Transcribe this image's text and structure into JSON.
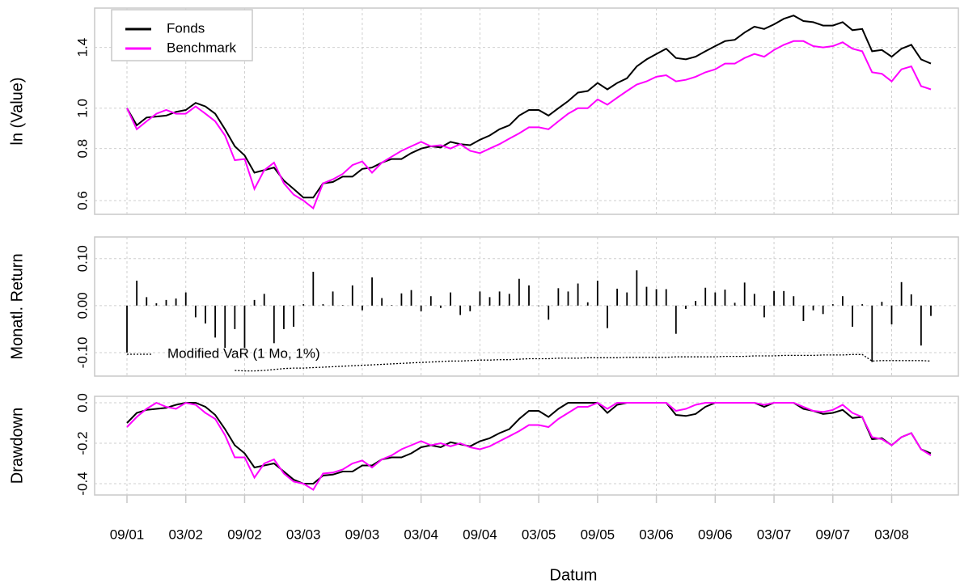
{
  "chart_data": [
    {
      "type": "line",
      "ylabel": "ln (Value)",
      "log_scale": true,
      "grid": true,
      "legend": "topleft",
      "ylim": [
        0.556,
        1.74
      ],
      "yticks": [
        0.6,
        0.8,
        {
          "value": 1,
          "label": "1.0"
        },
        1.4
      ],
      "series": [
        {
          "name": "Fonds",
          "color": "#000000",
          "values": [
            1.0,
            0.91,
            0.95,
            0.955,
            0.96,
            0.98,
            0.99,
            1.03,
            1.01,
            0.97,
            0.89,
            0.81,
            0.77,
            0.7,
            0.71,
            0.72,
            0.67,
            0.64,
            0.61,
            0.61,
            0.66,
            0.665,
            0.685,
            0.685,
            0.715,
            0.72,
            0.74,
            0.755,
            0.755,
            0.78,
            0.8,
            0.81,
            0.805,
            0.83,
            0.82,
            0.815,
            0.84,
            0.86,
            0.89,
            0.91,
            0.96,
            0.99,
            0.99,
            0.96,
            1.0,
            1.04,
            1.09,
            1.1,
            1.15,
            1.11,
            1.15,
            1.18,
            1.26,
            1.31,
            1.35,
            1.39,
            1.32,
            1.31,
            1.33,
            1.37,
            1.41,
            1.45,
            1.46,
            1.52,
            1.57,
            1.55,
            1.59,
            1.64,
            1.67,
            1.62,
            1.61,
            1.58,
            1.58,
            1.61,
            1.54,
            1.55,
            1.37,
            1.38,
            1.33,
            1.39,
            1.42,
            1.31,
            1.28
          ]
        },
        {
          "name": "Benchmark",
          "color": "#ff00ff",
          "values": [
            1.0,
            0.89,
            0.93,
            0.97,
            0.99,
            0.97,
            0.97,
            1.01,
            0.97,
            0.93,
            0.86,
            0.75,
            0.755,
            0.64,
            0.71,
            0.74,
            0.66,
            0.62,
            0.6,
            0.575,
            0.66,
            0.675,
            0.695,
            0.73,
            0.745,
            0.7,
            0.74,
            0.765,
            0.79,
            0.81,
            0.83,
            0.81,
            0.815,
            0.8,
            0.82,
            0.79,
            0.78,
            0.8,
            0.82,
            0.845,
            0.87,
            0.9,
            0.9,
            0.89,
            0.93,
            0.97,
            1.0,
            1.0,
            1.05,
            1.02,
            1.06,
            1.1,
            1.14,
            1.16,
            1.19,
            1.2,
            1.16,
            1.17,
            1.19,
            1.22,
            1.24,
            1.28,
            1.28,
            1.32,
            1.35,
            1.33,
            1.38,
            1.42,
            1.45,
            1.45,
            1.41,
            1.4,
            1.41,
            1.44,
            1.39,
            1.37,
            1.22,
            1.21,
            1.16,
            1.24,
            1.26,
            1.13,
            1.11
          ]
        }
      ]
    },
    {
      "type": "bar",
      "ylabel": "Monatl. Return",
      "grid": true,
      "legend": "bottomleft",
      "ylim": [
        -0.15,
        0.146
      ],
      "yticks": [
        {
          "value": -0.1,
          "label": "-0.10"
        },
        {
          "value": 0,
          "label": "0.00"
        },
        {
          "value": 0.1,
          "label": "0.10"
        }
      ],
      "series": [
        {
          "color": "#000000",
          "values": [
            -0.1,
            0.053,
            0.018,
            0.005,
            0.012,
            0.015,
            0.028,
            -0.025,
            -0.038,
            -0.068,
            -0.09,
            -0.05,
            -0.09,
            0.012,
            0.025,
            -0.08,
            -0.05,
            -0.045,
            0.003,
            0.072,
            0.003,
            0.03,
            0.001,
            0.043,
            -0.01,
            0.06,
            0.016,
            0.001,
            0.026,
            0.033,
            -0.012,
            0.02,
            -0.005,
            0.028,
            -0.02,
            -0.012,
            0.03,
            0.018,
            0.03,
            0.025,
            0.057,
            0.043,
            0,
            -0.03,
            0.037,
            0.03,
            0.047,
            0.007,
            0.053,
            -0.048,
            0.036,
            0.028,
            0.075,
            0.04,
            0.035,
            0.035,
            -0.06,
            -0.007,
            0.01,
            0.038,
            0.028,
            0.034,
            0.006,
            0.049,
            0.025,
            -0.025,
            0.031,
            0.031,
            0.02,
            -0.033,
            -0.01,
            -0.018,
            0.003,
            0.02,
            -0.045,
            0.003,
            -0.12,
            0.008,
            -0.04,
            0.05,
            0.024,
            -0.085,
            -0.022
          ]
        },
        {
          "name": "Modified VaR (1 Mo, 1%)",
          "type": "line",
          "line_style": "dotted",
          "color": "#000000",
          "values": [
            null,
            null,
            null,
            null,
            null,
            null,
            null,
            null,
            null,
            null,
            null,
            -0.138,
            -0.139,
            -0.139,
            -0.138,
            -0.136,
            -0.134,
            -0.133,
            -0.133,
            -0.132,
            -0.131,
            -0.13,
            -0.129,
            -0.128,
            -0.127,
            -0.126,
            -0.125,
            -0.124,
            -0.123,
            -0.122,
            -0.121,
            -0.12,
            -0.119,
            -0.118,
            -0.118,
            -0.117,
            -0.116,
            -0.116,
            -0.115,
            -0.115,
            -0.114,
            -0.113,
            -0.113,
            -0.113,
            -0.112,
            -0.112,
            -0.112,
            -0.111,
            -0.111,
            -0.111,
            -0.111,
            -0.11,
            -0.11,
            -0.11,
            -0.11,
            -0.11,
            -0.109,
            -0.109,
            -0.109,
            -0.109,
            -0.109,
            -0.108,
            -0.108,
            -0.108,
            -0.107,
            -0.107,
            -0.107,
            -0.106,
            -0.106,
            -0.106,
            -0.106,
            -0.105,
            -0.105,
            -0.105,
            -0.104,
            -0.104,
            -0.118,
            -0.117,
            -0.117,
            -0.117,
            -0.117,
            -0.117,
            -0.118
          ]
        }
      ]
    },
    {
      "type": "line",
      "ylabel": "Drawdown",
      "xlabel": "Datum",
      "grid": true,
      "ylim": [
        -0.456,
        0.032
      ],
      "yticks": [
        -0.4,
        -0.2,
        {
          "value": 0,
          "label": "0.0"
        }
      ],
      "categories": [
        "09/01",
        null,
        null,
        null,
        null,
        null,
        "03/02",
        null,
        null,
        null,
        null,
        null,
        "09/02",
        null,
        null,
        null,
        null,
        null,
        "03/03",
        null,
        null,
        null,
        null,
        null,
        "09/03",
        null,
        null,
        null,
        null,
        null,
        "03/04",
        null,
        null,
        null,
        null,
        null,
        "09/04",
        null,
        null,
        null,
        null,
        null,
        "03/05",
        null,
        null,
        null,
        null,
        null,
        "09/05",
        null,
        null,
        null,
        null,
        null,
        "03/06",
        null,
        null,
        null,
        null,
        null,
        "09/06",
        null,
        null,
        null,
        null,
        null,
        "03/07",
        null,
        null,
        null,
        null,
        null,
        "09/07",
        null,
        null,
        null,
        null,
        null,
        "03/08",
        null,
        null,
        null,
        null
      ],
      "series": [
        {
          "color": "#000000",
          "values": [
            -0.1,
            -0.05,
            -0.035,
            -0.03,
            -0.025,
            -0.01,
            0,
            0,
            -0.02,
            -0.06,
            -0.13,
            -0.21,
            -0.25,
            -0.32,
            -0.31,
            -0.3,
            -0.34,
            -0.38,
            -0.4,
            -0.4,
            -0.36,
            -0.355,
            -0.34,
            -0.34,
            -0.31,
            -0.31,
            -0.28,
            -0.27,
            -0.27,
            -0.25,
            -0.22,
            -0.21,
            -0.22,
            -0.195,
            -0.205,
            -0.215,
            -0.19,
            -0.175,
            -0.15,
            -0.13,
            -0.08,
            -0.04,
            -0.04,
            -0.07,
            -0.03,
            0,
            0,
            0,
            0,
            -0.05,
            -0.01,
            0,
            0,
            0,
            0,
            0,
            -0.06,
            -0.065,
            -0.055,
            -0.02,
            0,
            0,
            0,
            0,
            0,
            -0.02,
            0,
            0,
            0,
            -0.03,
            -0.04,
            -0.055,
            -0.05,
            -0.035,
            -0.075,
            -0.07,
            -0.18,
            -0.175,
            -0.21,
            -0.17,
            -0.15,
            -0.23,
            -0.25
          ]
        },
        {
          "color": "#ff00ff",
          "values": [
            -0.12,
            -0.07,
            -0.03,
            0,
            -0.02,
            -0.03,
            0,
            -0.01,
            -0.05,
            -0.08,
            -0.16,
            -0.27,
            -0.27,
            -0.37,
            -0.3,
            -0.28,
            -0.35,
            -0.39,
            -0.4,
            -0.43,
            -0.35,
            -0.345,
            -0.33,
            -0.3,
            -0.285,
            -0.32,
            -0.28,
            -0.26,
            -0.23,
            -0.21,
            -0.19,
            -0.21,
            -0.2,
            -0.215,
            -0.2,
            -0.22,
            -0.23,
            -0.215,
            -0.19,
            -0.165,
            -0.14,
            -0.11,
            -0.11,
            -0.12,
            -0.08,
            -0.05,
            -0.02,
            -0.02,
            0,
            -0.03,
            0,
            0,
            0,
            0,
            0,
            0,
            -0.04,
            -0.03,
            -0.01,
            0,
            0,
            0,
            0,
            0,
            0,
            -0.01,
            0,
            0,
            0,
            -0.02,
            -0.04,
            -0.045,
            -0.035,
            -0.01,
            -0.05,
            -0.07,
            -0.17,
            -0.18,
            -0.21,
            -0.17,
            -0.15,
            -0.23,
            -0.26
          ]
        }
      ]
    }
  ]
}
